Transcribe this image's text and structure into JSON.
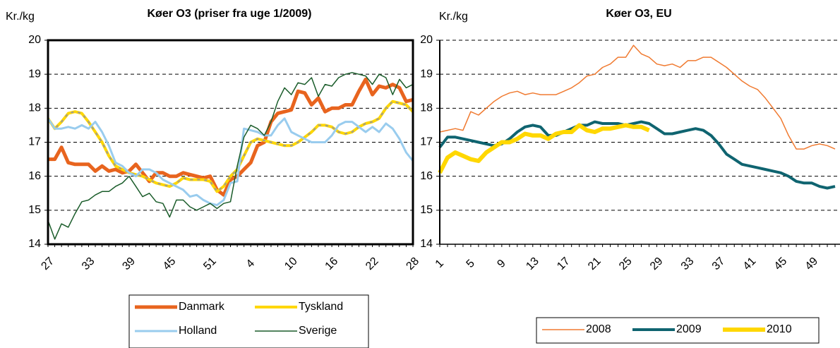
{
  "chart_data": [
    {
      "type": "line",
      "title": "Køer O3  (priser fra uge 1/2009)",
      "y_label": "Kr./kg",
      "categories": [
        "27",
        null,
        null,
        null,
        null,
        null,
        "33",
        null,
        null,
        null,
        null,
        null,
        "39",
        null,
        null,
        null,
        null,
        null,
        "45",
        null,
        null,
        null,
        null,
        null,
        "51",
        null,
        null,
        null,
        null,
        null,
        "4",
        null,
        null,
        null,
        null,
        null,
        "10",
        null,
        null,
        null,
        null,
        null,
        "16",
        null,
        null,
        null,
        null,
        null,
        "22",
        null,
        null,
        null,
        null,
        null,
        "28"
      ],
      "series": [
        {
          "name": "Danmark",
          "color": "#e8641e",
          "width": 5,
          "values": [
            16.5,
            16.5,
            16.85,
            16.4,
            16.35,
            16.35,
            16.35,
            16.15,
            16.3,
            16.15,
            16.2,
            16.1,
            16.15,
            16.35,
            16.1,
            15.85,
            16.1,
            16.1,
            16.0,
            16.0,
            16.1,
            16.05,
            16.0,
            15.95,
            16.0,
            15.6,
            15.45,
            15.9,
            16.0,
            16.2,
            16.4,
            16.9,
            17.0,
            17.6,
            17.85,
            17.9,
            17.95,
            18.5,
            18.45,
            18.1,
            18.3,
            17.9,
            18.0,
            18.0,
            18.1,
            18.1,
            18.5,
            18.85,
            18.4,
            18.65,
            18.6,
            18.7,
            18.6,
            18.2,
            18.25
          ]
        },
        {
          "name": "Tyskland",
          "color": "#ffd700",
          "width": 4,
          "values": [
            17.7,
            17.4,
            17.6,
            17.85,
            17.9,
            17.85,
            17.6,
            17.3,
            17.0,
            16.6,
            16.3,
            16.2,
            16.1,
            16.05,
            16.0,
            15.9,
            15.8,
            15.75,
            15.7,
            15.8,
            15.95,
            15.9,
            15.9,
            15.9,
            15.85,
            15.55,
            15.7,
            16.0,
            16.2,
            16.6,
            17.0,
            17.1,
            17.05,
            17.0,
            16.95,
            16.9,
            16.9,
            17.0,
            17.15,
            17.3,
            17.5,
            17.5,
            17.45,
            17.3,
            17.25,
            17.3,
            17.45,
            17.55,
            17.6,
            17.7,
            18.0,
            18.2,
            18.15,
            18.1,
            17.9
          ]
        },
        {
          "name": "Holland",
          "color": "#99ccee",
          "width": 3,
          "values": [
            17.7,
            17.4,
            17.4,
            17.45,
            17.4,
            17.5,
            17.4,
            17.6,
            17.3,
            16.9,
            16.4,
            16.3,
            16.1,
            16.0,
            16.2,
            16.2,
            16.1,
            15.9,
            15.8,
            15.7,
            15.6,
            15.4,
            15.45,
            15.3,
            15.2,
            15.15,
            15.3,
            15.8,
            15.85,
            17.4,
            17.35,
            17.3,
            17.2,
            17.2,
            17.5,
            17.7,
            17.3,
            17.2,
            17.1,
            17.0,
            17.0,
            17.0,
            17.2,
            17.5,
            17.6,
            17.6,
            17.45,
            17.3,
            17.45,
            17.3,
            17.55,
            17.4,
            17.1,
            16.7,
            16.45
          ]
        },
        {
          "name": "Sverige",
          "color": "#1a5c2a",
          "width": 1.5,
          "values": [
            14.7,
            14.15,
            14.6,
            14.5,
            14.9,
            15.25,
            15.3,
            15.45,
            15.55,
            15.55,
            15.7,
            15.8,
            16.0,
            15.7,
            15.4,
            15.5,
            15.25,
            15.2,
            14.8,
            15.3,
            15.3,
            15.1,
            15.0,
            15.1,
            15.2,
            15.05,
            15.2,
            15.25,
            16.3,
            17.15,
            17.5,
            17.4,
            17.2,
            17.6,
            18.2,
            18.6,
            18.4,
            18.75,
            18.7,
            18.9,
            18.35,
            18.7,
            18.65,
            18.9,
            19.0,
            19.05,
            19.0,
            18.95,
            18.7,
            19.0,
            18.9,
            18.4,
            18.85,
            18.6,
            18.7
          ]
        }
      ],
      "ylim": [
        14,
        20
      ],
      "yticks": [
        14,
        15,
        16,
        17,
        18,
        19,
        20
      ],
      "grid": true
    },
    {
      "type": "line",
      "title": "Køer O3, EU",
      "y_label": "Kr./kg",
      "categories": [
        "1",
        null,
        null,
        null,
        "5",
        null,
        null,
        null,
        "9",
        null,
        null,
        null,
        "13",
        null,
        null,
        null,
        "17",
        null,
        null,
        null,
        "21",
        null,
        null,
        null,
        "25",
        null,
        null,
        null,
        "29",
        null,
        null,
        null,
        "33",
        null,
        null,
        null,
        "37",
        null,
        null,
        null,
        "41",
        null,
        null,
        null,
        "45",
        null,
        null,
        null,
        "49",
        null,
        null,
        null
      ],
      "series": [
        {
          "name": "2008",
          "color": "#f07a30",
          "width": 1.5,
          "values": [
            17.3,
            17.35,
            17.4,
            17.35,
            17.9,
            17.8,
            18.0,
            18.2,
            18.35,
            18.45,
            18.5,
            18.4,
            18.45,
            18.4,
            18.4,
            18.4,
            18.5,
            18.6,
            18.75,
            18.95,
            19.0,
            19.2,
            19.3,
            19.5,
            19.5,
            19.85,
            19.6,
            19.5,
            19.3,
            19.25,
            19.3,
            19.2,
            19.4,
            19.4,
            19.5,
            19.5,
            19.35,
            19.2,
            19.0,
            18.8,
            18.65,
            18.55,
            18.3,
            18.0,
            17.7,
            17.2,
            16.8,
            16.8,
            16.9,
            16.95,
            16.9,
            16.8
          ]
        },
        {
          "name": "2009",
          "color": "#0f6470",
          "width": 4,
          "values": [
            16.85,
            17.15,
            17.15,
            17.1,
            17.05,
            17.0,
            16.95,
            16.9,
            16.95,
            17.1,
            17.3,
            17.45,
            17.5,
            17.45,
            17.2,
            17.2,
            17.3,
            17.4,
            17.5,
            17.5,
            17.6,
            17.55,
            17.55,
            17.55,
            17.5,
            17.55,
            17.6,
            17.55,
            17.4,
            17.25,
            17.25,
            17.3,
            17.35,
            17.4,
            17.35,
            17.2,
            16.95,
            16.65,
            16.5,
            16.35,
            16.3,
            16.25,
            16.2,
            16.15,
            16.1,
            16.0,
            15.85,
            15.8,
            15.8,
            15.7,
            15.65,
            15.7
          ]
        },
        {
          "name": "2010",
          "color": "#ffd700",
          "width": 6,
          "values": [
            16.1,
            16.55,
            16.7,
            16.6,
            16.5,
            16.45,
            16.7,
            16.85,
            17.0,
            17.0,
            17.1,
            17.25,
            17.2,
            17.2,
            17.1,
            17.25,
            17.3,
            17.3,
            17.5,
            17.35,
            17.3,
            17.4,
            17.4,
            17.45,
            17.5,
            17.45,
            17.45,
            17.35,
            null,
            null,
            null,
            null,
            null,
            null,
            null,
            null,
            null,
            null,
            null,
            null,
            null,
            null,
            null,
            null,
            null,
            null,
            null,
            null,
            null,
            null,
            null,
            null
          ]
        }
      ],
      "ylim": [
        14,
        20
      ],
      "yticks": [
        14,
        15,
        16,
        17,
        18,
        19,
        20
      ],
      "grid": true
    }
  ]
}
